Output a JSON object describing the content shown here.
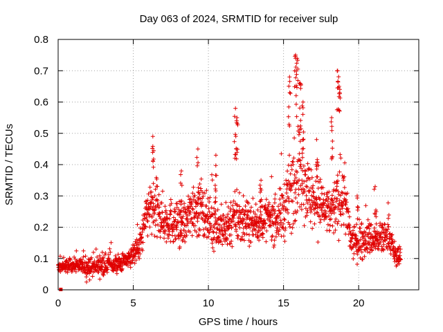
{
  "chart_data": {
    "type": "scatter",
    "title": "Day 063 of 2024, SRMTID for receiver sulp",
    "xlabel": "GPS time / hours",
    "ylabel": "SRMTID / TECUs",
    "xlim": [
      0,
      24
    ],
    "ylim": [
      0,
      0.8
    ],
    "xticks": [
      0,
      5,
      10,
      15,
      20
    ],
    "yticks": [
      0,
      0.1,
      0.2,
      0.3,
      0.4,
      0.5,
      0.6,
      0.7,
      0.8
    ],
    "grid": true,
    "marker": "+",
    "series_color": "#e00000",
    "envelope": {
      "description": "approximate trend of the SRMTID values read from the scatter",
      "hours": [
        0,
        1,
        2,
        3,
        4,
        5,
        5.5,
        6,
        6.5,
        7,
        7.5,
        8,
        8.5,
        9,
        9.5,
        10,
        10.5,
        11,
        11.5,
        12,
        12.5,
        13,
        13.5,
        14,
        14.5,
        15,
        15.5,
        16,
        16.5,
        17,
        17.5,
        18,
        18.5,
        19,
        19.5,
        20,
        20.5,
        21,
        21.5,
        22,
        22.5,
        22.8
      ],
      "median": [
        0.07,
        0.08,
        0.07,
        0.08,
        0.08,
        0.11,
        0.15,
        0.26,
        0.25,
        0.22,
        0.22,
        0.2,
        0.21,
        0.27,
        0.24,
        0.22,
        0.2,
        0.19,
        0.22,
        0.21,
        0.22,
        0.21,
        0.22,
        0.23,
        0.22,
        0.25,
        0.32,
        0.4,
        0.33,
        0.28,
        0.27,
        0.24,
        0.27,
        0.3,
        0.15,
        0.15,
        0.17,
        0.16,
        0.16,
        0.18,
        0.1,
        0.12
      ],
      "spread": [
        0.02,
        0.02,
        0.03,
        0.03,
        0.03,
        0.03,
        0.05,
        0.08,
        0.1,
        0.07,
        0.07,
        0.06,
        0.07,
        0.09,
        0.08,
        0.07,
        0.07,
        0.07,
        0.08,
        0.07,
        0.06,
        0.06,
        0.06,
        0.06,
        0.07,
        0.09,
        0.12,
        0.15,
        0.11,
        0.09,
        0.08,
        0.08,
        0.09,
        0.1,
        0.05,
        0.05,
        0.06,
        0.05,
        0.05,
        0.05,
        0.03,
        0.03
      ]
    },
    "peaks": [
      {
        "x": 6.3,
        "y": 0.49
      },
      {
        "x": 9.3,
        "y": 0.45
      },
      {
        "x": 10.5,
        "y": 0.43
      },
      {
        "x": 11.8,
        "y": 0.58
      },
      {
        "x": 11.9,
        "y": 0.55
      },
      {
        "x": 15.4,
        "y": 0.68
      },
      {
        "x": 15.8,
        "y": 0.75
      },
      {
        "x": 15.9,
        "y": 0.74
      },
      {
        "x": 16.1,
        "y": 0.66
      },
      {
        "x": 16.3,
        "y": 0.6
      },
      {
        "x": 18.2,
        "y": 0.55
      },
      {
        "x": 18.6,
        "y": 0.7
      },
      {
        "x": 18.7,
        "y": 0.65
      },
      {
        "x": 17.2,
        "y": 0.48
      },
      {
        "x": 13.5,
        "y": 0.35
      },
      {
        "x": 8.2,
        "y": 0.38
      },
      {
        "x": 21.1,
        "y": 0.33
      },
      {
        "x": 19.9,
        "y": 0.3
      }
    ],
    "outlier_point": {
      "x": 0.2,
      "y": 0.0
    }
  }
}
